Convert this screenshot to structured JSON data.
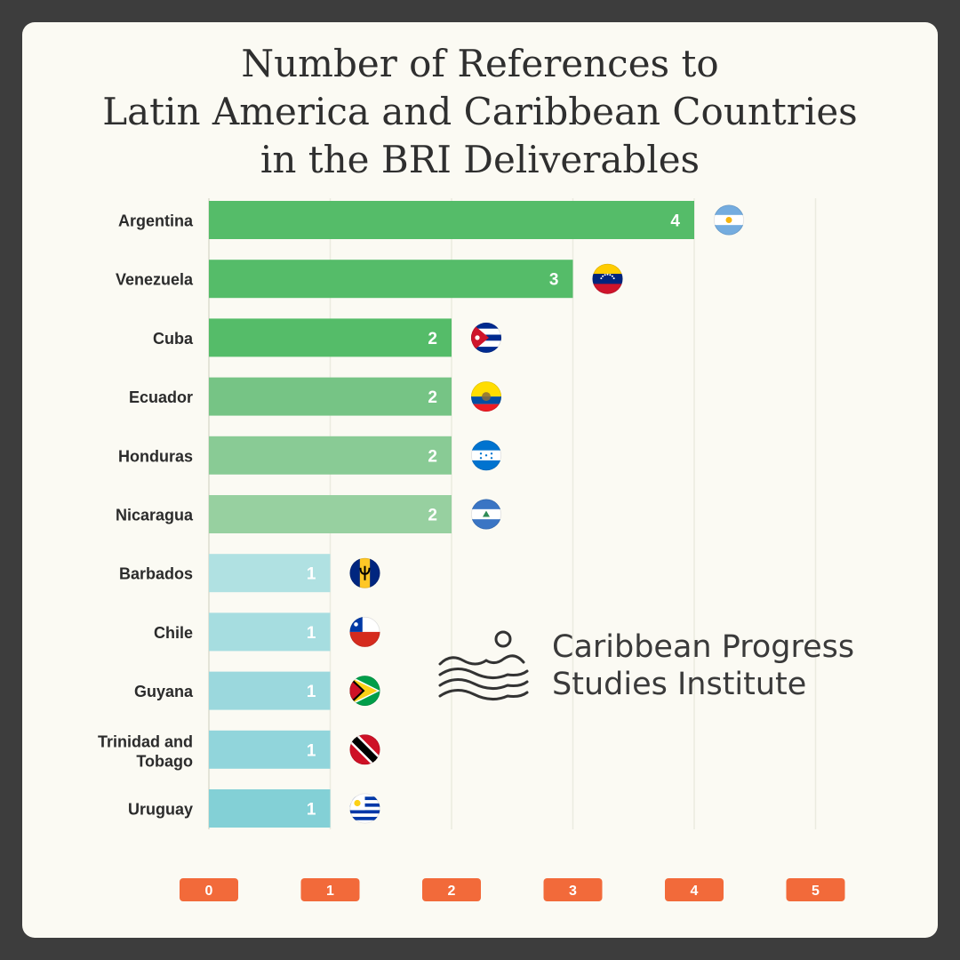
{
  "chart_data": {
    "type": "bar",
    "orientation": "horizontal",
    "title": "Number of References to Latin America and Caribbean Countries in the BRI Deliverables",
    "title_lines": [
      "Number of References to",
      "Latin America and Caribbean Countries",
      "in the BRI Deliverables"
    ],
    "categories": [
      "Argentina",
      "Venezuela",
      "Cuba",
      "Ecuador",
      "Honduras",
      "Nicaragua",
      "Barbados",
      "Chile",
      "Guyana",
      "Trinidad and Tobago",
      "Uruguay"
    ],
    "values": [
      4,
      3,
      2,
      2,
      2,
      2,
      1,
      1,
      1,
      1,
      1
    ],
    "data_labels": [
      "4",
      "3",
      "2",
      "2",
      "2",
      "2",
      "1",
      "1",
      "1",
      "1",
      "1"
    ],
    "bar_colors": [
      "#55bc69",
      "#55bc69",
      "#55bc69",
      "#76c485",
      "#89cb95",
      "#97d0a0",
      "#b0e1e2",
      "#a6dde0",
      "#9bd8dd",
      "#91d5db",
      "#83d0d6"
    ],
    "flags": [
      "argentina-flag",
      "venezuela-flag",
      "cuba-flag",
      "ecuador-flag",
      "honduras-flag",
      "nicaragua-flag",
      "barbados-flag",
      "chile-flag",
      "guyana-flag",
      "trinidad-and-tobago-flag",
      "uruguay-flag"
    ],
    "xticks": [
      0,
      1,
      2,
      3,
      4,
      5
    ],
    "xtick_labels": [
      "0",
      "1",
      "2",
      "3",
      "4",
      "5"
    ],
    "xlim": [
      0,
      5
    ],
    "tick_badge_color": "#f26a3a",
    "grid": true,
    "legend": "none",
    "xlabel": "",
    "ylabel": ""
  },
  "logo": {
    "name": "caribbean-progress-studies-institute-logo",
    "line1": "Caribbean Progress",
    "line2": "Studies Institute"
  }
}
